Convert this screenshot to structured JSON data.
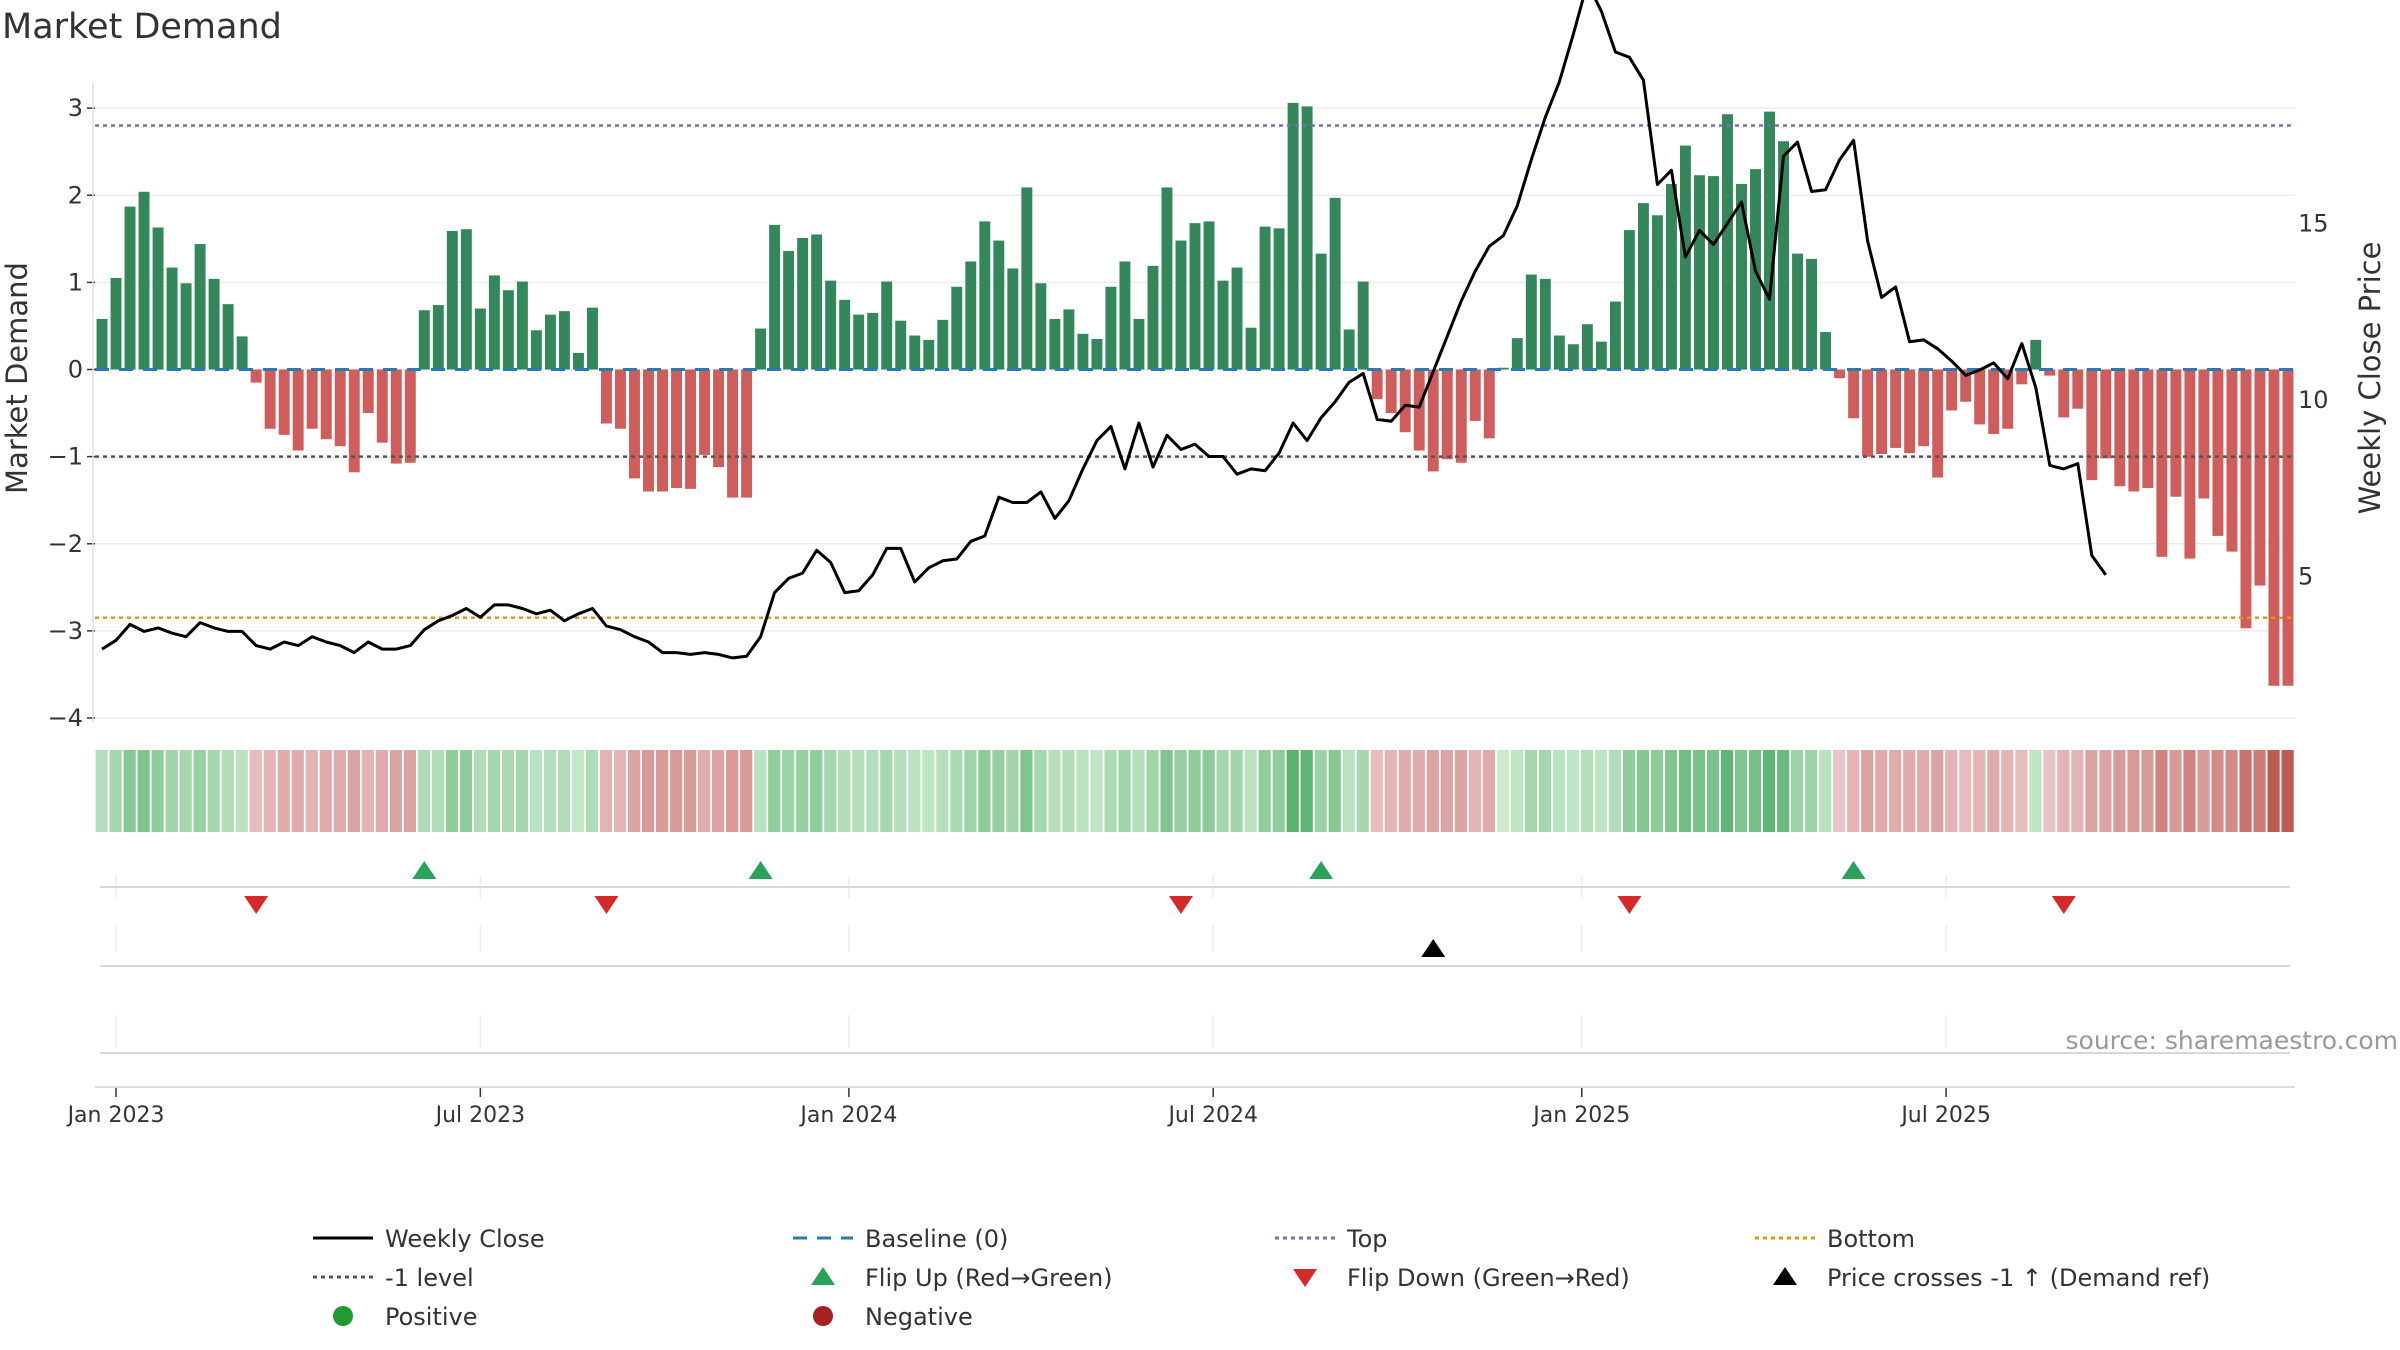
{
  "chart_data": {
    "type": "bar",
    "title": "Market Demand",
    "ylabel": "Market Demand",
    "y2label": "Weekly Close Price",
    "ylim": [
      -4,
      3.3
    ],
    "y2lim": [
      1,
      19
    ],
    "yticks": [
      3,
      2,
      1,
      0,
      -1,
      -2,
      -3,
      -4
    ],
    "ytick_labels": [
      "3",
      "2",
      "1",
      "0",
      "−1",
      "−2",
      "−3",
      "−4"
    ],
    "y2ticks": [
      15,
      10,
      5
    ],
    "y2tick_labels": [
      "15",
      "10",
      "5"
    ],
    "xticks": [
      {
        "label": "Jan 2023",
        "week": 1
      },
      {
        "label": "Jul 2023",
        "week": 27
      },
      {
        "label": "Jan 2024",
        "week": 53.3
      },
      {
        "label": "Jul 2024",
        "week": 79.3
      },
      {
        "label": "Jan 2025",
        "week": 105.6
      },
      {
        "label": "Jul 2025",
        "week": 131.6
      }
    ],
    "levels": {
      "top": 2.8,
      "minus_one": -1,
      "bottom": -2.85,
      "baseline": 0
    },
    "demand": [
      0.58,
      1.05,
      1.87,
      2.04,
      1.63,
      1.17,
      0.99,
      1.44,
      1.04,
      0.75,
      0.38,
      -0.15,
      -0.68,
      -0.75,
      -0.93,
      -0.68,
      -0.8,
      -0.88,
      -1.18,
      -0.5,
      -0.84,
      -1.08,
      -1.07,
      0.68,
      0.74,
      1.59,
      1.61,
      0.7,
      1.08,
      0.91,
      1.01,
      0.45,
      0.63,
      0.67,
      0.19,
      0.71,
      -0.62,
      -0.68,
      -1.25,
      -1.4,
      -1.4,
      -1.36,
      -1.37,
      -0.98,
      -1.12,
      -1.47,
      -1.47,
      0.47,
      1.66,
      1.36,
      1.51,
      1.55,
      1.02,
      0.8,
      0.63,
      0.65,
      1.01,
      0.56,
      0.39,
      0.34,
      0.57,
      0.95,
      1.24,
      1.7,
      1.48,
      1.16,
      2.09,
      0.99,
      0.58,
      0.69,
      0.41,
      0.35,
      0.95,
      1.24,
      0.58,
      1.19,
      2.09,
      1.48,
      1.68,
      1.7,
      1.02,
      1.17,
      0.48,
      1.64,
      1.62,
      3.06,
      3.02,
      1.33,
      1.97,
      0.46,
      1.01,
      -0.34,
      -0.5,
      -0.72,
      -0.93,
      -1.17,
      -1.03,
      -1.07,
      -0.59,
      -0.79,
      0.02,
      0.36,
      1.09,
      1.04,
      0.39,
      0.29,
      0.52,
      0.32,
      0.78,
      1.6,
      1.91,
      1.77,
      2.13,
      2.57,
      2.23,
      2.22,
      2.93,
      2.13,
      2.3,
      2.96,
      2.62,
      1.33,
      1.27,
      0.43,
      -0.1,
      -0.56,
      -1.0,
      -0.97,
      -0.9,
      -0.96,
      -0.88,
      -1.24,
      -0.47,
      -0.37,
      -0.63,
      -0.74,
      -0.68,
      -0.17,
      0.34,
      -0.07,
      -0.55,
      -0.45,
      -1.27,
      -1.02,
      -1.34,
      -1.4,
      -1.36,
      -2.15,
      -1.46,
      -2.17,
      -1.48,
      -1.91,
      -2.09,
      -2.97,
      -2.48,
      -3.63,
      -3.63
    ],
    "close": [
      2.95,
      3.2,
      3.65,
      3.45,
      3.55,
      3.4,
      3.3,
      3.7,
      3.55,
      3.45,
      3.45,
      3.05,
      2.95,
      3.15,
      3.05,
      3.3,
      3.15,
      3.05,
      2.85,
      3.15,
      2.95,
      2.95,
      3.05,
      3.5,
      3.75,
      3.9,
      4.1,
      3.85,
      4.2,
      4.2,
      4.1,
      3.95,
      4.05,
      3.75,
      3.95,
      4.1,
      3.6,
      3.5,
      3.3,
      3.15,
      2.85,
      2.85,
      2.8,
      2.85,
      2.8,
      2.7,
      2.75,
      3.3,
      4.55,
      4.95,
      5.1,
      5.75,
      5.4,
      4.55,
      4.6,
      5.05,
      5.8,
      5.8,
      4.85,
      5.25,
      5.45,
      5.5,
      6.0,
      6.15,
      7.25,
      7.1,
      7.1,
      7.4,
      6.65,
      7.15,
      8.05,
      8.85,
      9.25,
      8.05,
      9.35,
      8.1,
      9.0,
      8.6,
      8.75,
      8.4,
      8.4,
      7.9,
      8.05,
      8.0,
      8.5,
      9.35,
      8.85,
      9.5,
      9.95,
      10.5,
      10.75,
      9.45,
      9.4,
      9.85,
      9.8,
      10.8,
      11.8,
      12.8,
      13.65,
      14.35,
      14.65,
      15.5,
      16.8,
      18.0,
      19.0,
      20.35,
      21.8,
      21.0,
      19.85,
      19.7,
      19.05,
      16.1,
      16.5,
      14.05,
      14.8,
      14.4,
      15.0,
      15.6,
      13.65,
      12.85,
      16.9,
      17.3,
      15.9,
      15.95,
      16.8,
      17.35,
      14.5,
      12.9,
      13.2,
      11.65,
      11.7,
      11.45,
      11.1,
      10.7,
      10.85,
      11.05,
      10.6,
      11.6,
      10.35,
      8.15,
      8.05,
      8.2,
      5.6,
      5.05
    ],
    "strip_colors": [
      "#5bb271",
      "#61b576",
      "#66b77a",
      "#6bba7e",
      "#71bd83",
      "#76bf87",
      "#7bc28c",
      "#80c590",
      "#86c794",
      "#8bca99",
      "#90cd9d",
      "#96cfa1",
      "#9bd2a6",
      "#a0d5aa",
      "#a5d7ae",
      "#abdab3",
      "#b0ddb7",
      "#b5dfbc",
      "#bbe2c0",
      "#c0e5c4",
      "#c5e7c9",
      "#cbeacd",
      "#e9c4c4",
      "#e6bcbc",
      "#e3b4b3",
      "#e0acab",
      "#dca3a3",
      "#d99b9a",
      "#d69392",
      "#d38b8a",
      "#d08381",
      "#cd7b79",
      "#ca7270",
      "#c66a68",
      "#c3625f",
      "#c05a57"
    ],
    "strip_bins": [
      -3.63,
      -3.25,
      -2.88,
      -2.5,
      -2.13,
      -1.75,
      -1.38,
      -1.0,
      -0.63,
      -0.25,
      0.12,
      0.5,
      0.88,
      1.25,
      1.63,
      2.0,
      2.38,
      2.75,
      3.13,
      3.5
    ],
    "flip_up_weeks": [
      23,
      47,
      87,
      125
    ],
    "flip_down_weeks": [
      11,
      36,
      77,
      109,
      140
    ],
    "price_cross_weeks": [
      95
    ],
    "colors": {
      "positive_bar": "#33875a",
      "negative_bar": "#cf5d5c",
      "close": "#000000",
      "baseline": "#2a7ab0",
      "top": "#7570b3",
      "minus_one": "#555555",
      "bottom": "#e69517",
      "flip_up": "#2aa35a",
      "flip_down": "#d62a2a",
      "cross": "#000000",
      "positive_dot": "#229a2f",
      "negative_dot": "#a8201f"
    },
    "source": "source: sharemaestro.com",
    "legend": [
      {
        "label": "Weekly Close",
        "kind": "line-solid",
        "color": "#000000"
      },
      {
        "label": "Baseline (0)",
        "kind": "line-dash",
        "color": "#2a7ab0"
      },
      {
        "label": "Top",
        "kind": "line-dot",
        "color": "#7570b3"
      },
      {
        "label": "Bottom",
        "kind": "line-dot",
        "color": "#e69517"
      },
      {
        "label": "-1 level",
        "kind": "line-dot",
        "color": "#555555"
      },
      {
        "label": "Flip Up (Red→Green)",
        "kind": "tri-up",
        "color": "#2aa35a"
      },
      {
        "label": "Flip Down (Green→Red)",
        "kind": "tri-down",
        "color": "#d62a2a"
      },
      {
        "label": "Price crosses -1 ↑ (Demand ref)",
        "kind": "tri-up",
        "color": "#000000"
      },
      {
        "label": "Positive",
        "kind": "dot",
        "color": "#229a2f"
      },
      {
        "label": "Negative",
        "kind": "dot",
        "color": "#a8201f"
      }
    ]
  }
}
